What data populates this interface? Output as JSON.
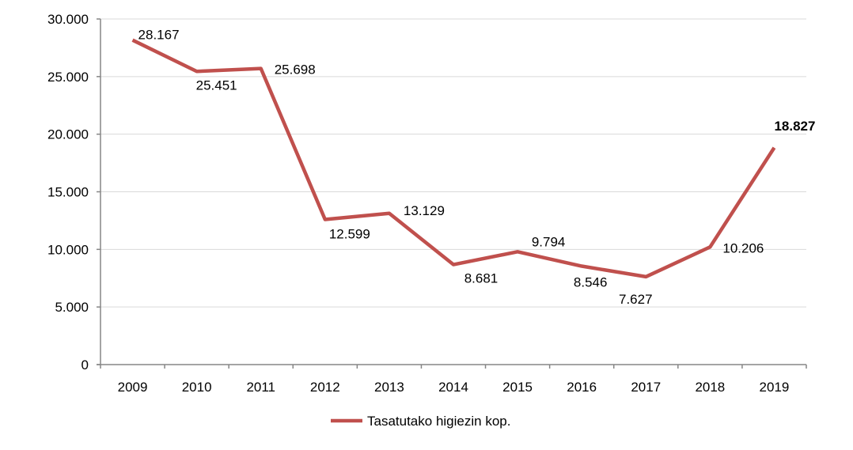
{
  "chart_data": {
    "type": "line",
    "title": "",
    "xlabel": "",
    "ylabel": "",
    "categories": [
      "2009",
      "2010",
      "2011",
      "2012",
      "2013",
      "2014",
      "2015",
      "2016",
      "2017",
      "2018",
      "2019"
    ],
    "series": [
      {
        "name": "Tasatutako higiezin kop.",
        "color": "#c0504d",
        "values": [
          28167,
          25451,
          25698,
          12599,
          13129,
          8681,
          9794,
          8546,
          7627,
          10206,
          18827
        ],
        "labels": [
          "28.167",
          "25.451",
          "25.698",
          "12.599",
          "13.129",
          "8.681",
          "9.794",
          "8.546",
          "7.627",
          "10.206",
          "18.827"
        ]
      }
    ],
    "ylim": [
      0,
      30000
    ],
    "yticks": [
      0,
      5000,
      10000,
      15000,
      20000,
      25000,
      30000
    ],
    "ytick_labels": [
      "0",
      "5.000",
      "10.000",
      "15.000",
      "20.000",
      "25.000",
      "30.000"
    ],
    "grid": true,
    "legend": "bottom-center",
    "grid_color": "#d9d9d9",
    "axis_color": "#868686"
  }
}
